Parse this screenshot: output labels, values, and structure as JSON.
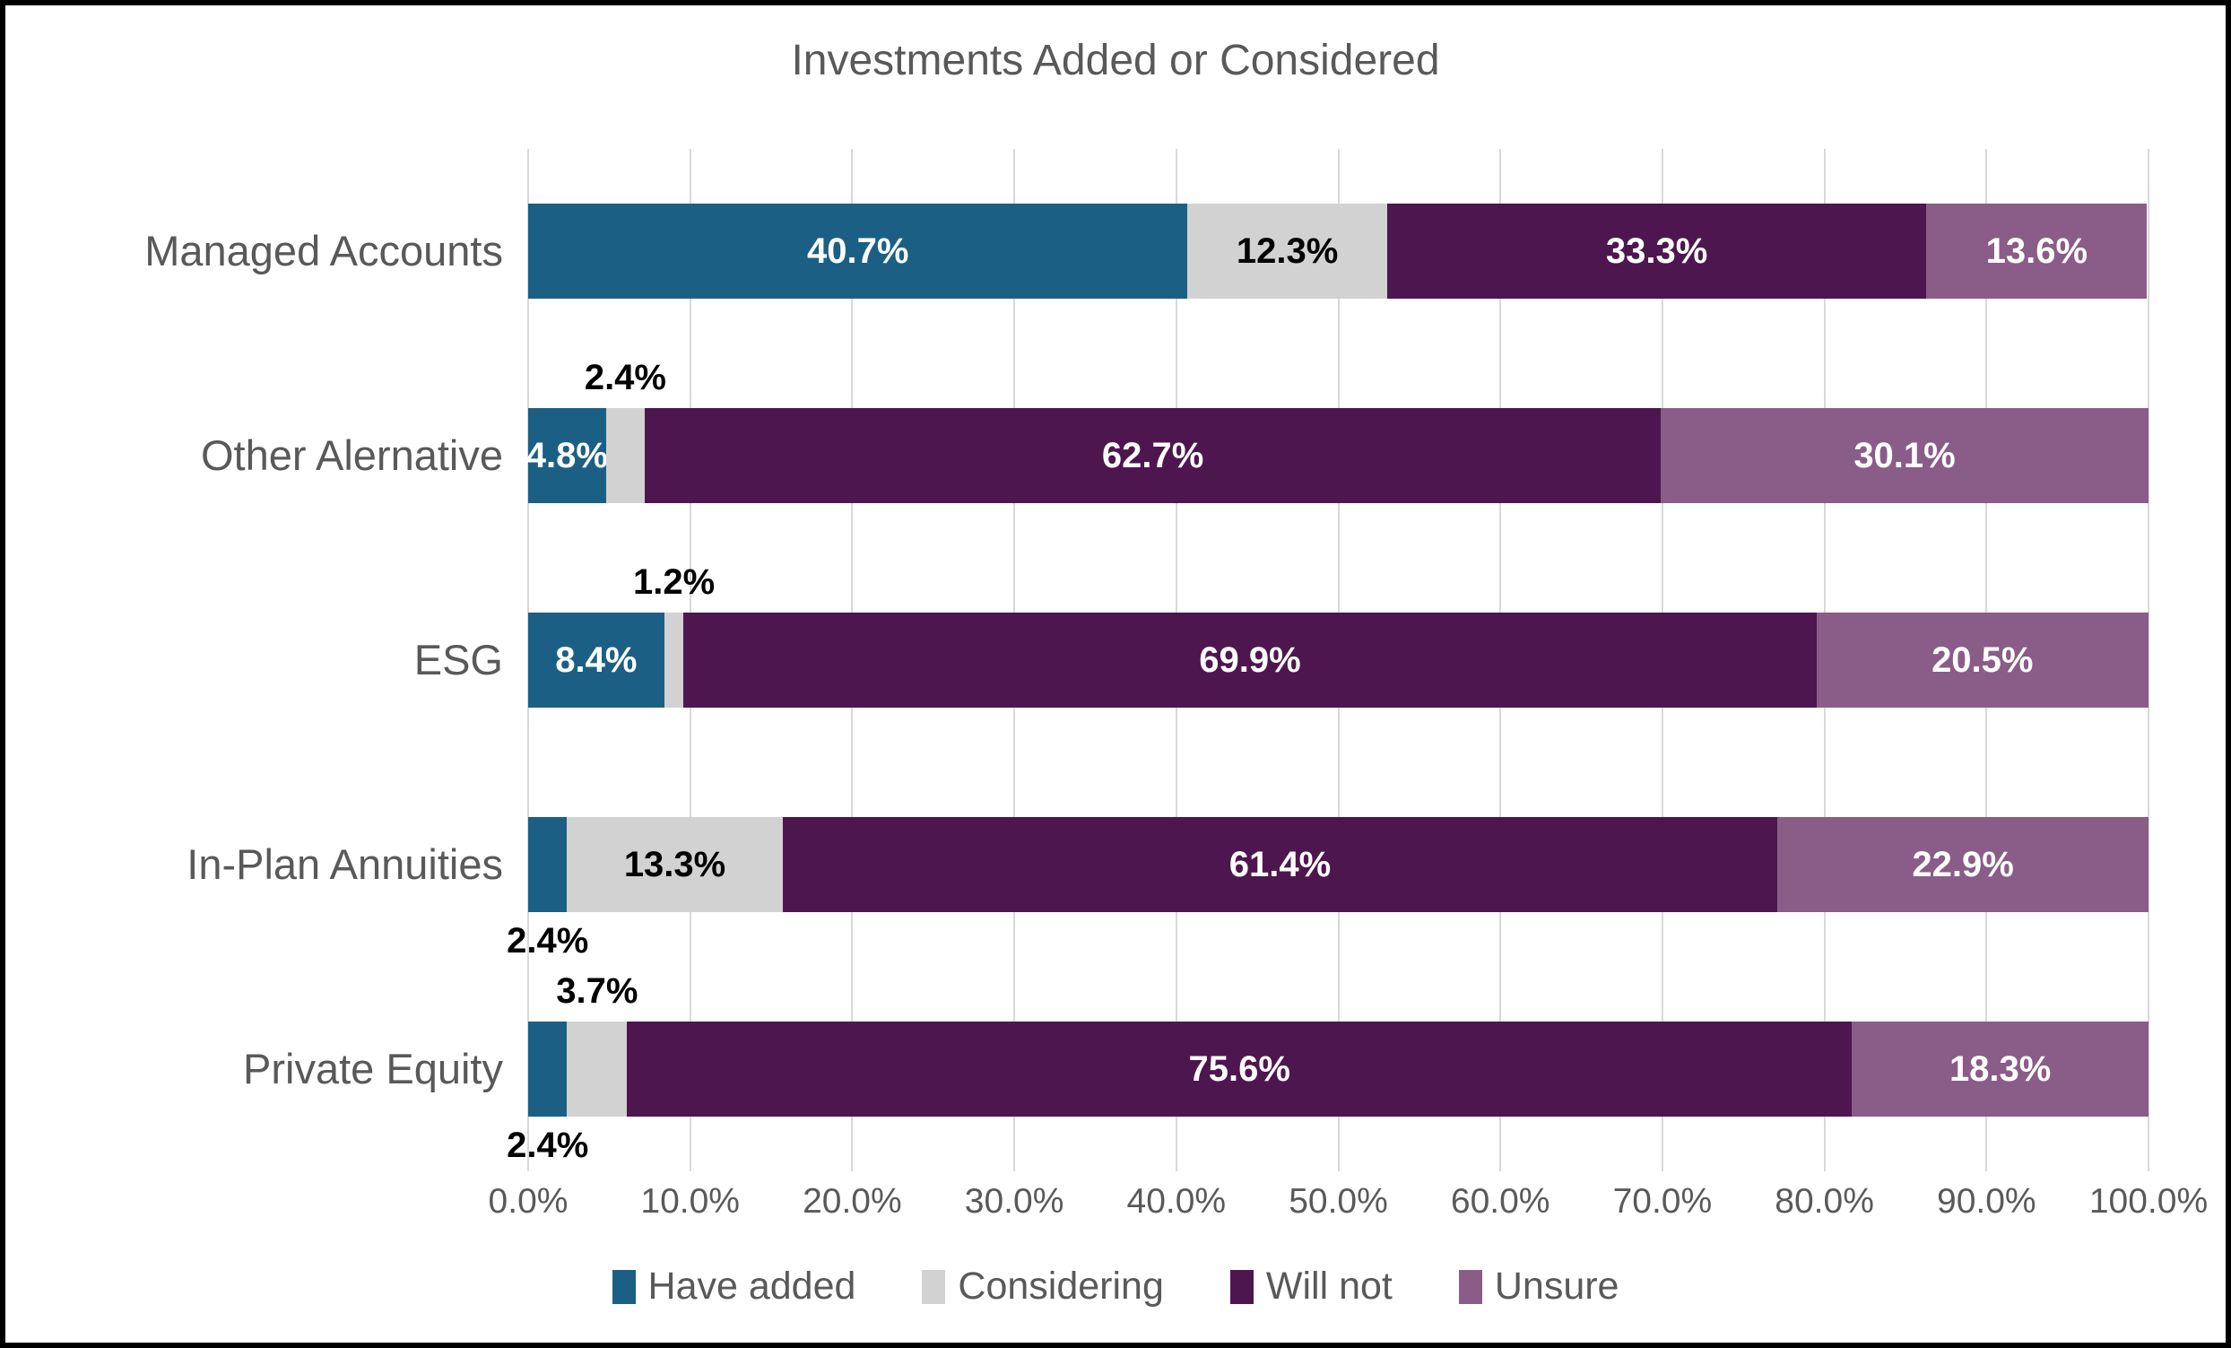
{
  "title": "Investments Added or Considered",
  "colors": {
    "have_added": "#1B6084",
    "considering": "#D2D2D2",
    "will_not": "#4E164F",
    "unsure": "#8A5C88",
    "axis_text": "#595959",
    "gridline": "#D9D9D9",
    "frame_border": "#000000"
  },
  "chart_data": {
    "type": "bar",
    "orientation": "horizontal",
    "stacked": true,
    "title": "Investments Added or Considered",
    "categories": [
      "Managed Accounts",
      "Other Alernative",
      "ESG",
      "In-Plan Annuities",
      "Private Equity"
    ],
    "series": [
      {
        "name": "Have added",
        "color": "#1B6084",
        "label_color": "#ffffff",
        "values": [
          40.7,
          4.8,
          8.4,
          2.4,
          2.4
        ]
      },
      {
        "name": "Considering",
        "color": "#D2D2D2",
        "label_color": "#000000",
        "values": [
          12.3,
          2.4,
          1.2,
          13.3,
          3.7
        ]
      },
      {
        "name": "Will not",
        "color": "#4E164F",
        "label_color": "#ffffff",
        "values": [
          33.3,
          62.7,
          69.9,
          61.4,
          75.6
        ]
      },
      {
        "name": "Unsure",
        "color": "#8A5C88",
        "label_color": "#ffffff",
        "values": [
          13.6,
          30.1,
          20.5,
          22.9,
          18.3
        ]
      }
    ],
    "data_labels": [
      [
        "40.7%",
        "12.3%",
        "33.3%",
        "13.6%"
      ],
      [
        "4.8%",
        "2.4%",
        "62.7%",
        "30.1%"
      ],
      [
        "8.4%",
        "1.2%",
        "69.9%",
        "20.5%"
      ],
      [
        "2.4%",
        "13.3%",
        "61.4%",
        "22.9%"
      ],
      [
        "2.4%",
        "3.7%",
        "75.6%",
        "18.3%"
      ]
    ],
    "label_positions": [
      [
        "inside",
        "inside",
        "inside",
        "inside"
      ],
      [
        "inside",
        "above",
        "inside",
        "inside"
      ],
      [
        "inside",
        "above",
        "inside",
        "inside"
      ],
      [
        "below",
        "inside",
        "inside",
        "inside"
      ],
      [
        "below",
        "above",
        "inside",
        "inside"
      ]
    ],
    "x_axis": {
      "min": 0,
      "max": 100,
      "tick_step": 10,
      "tick_labels": [
        "0.0%",
        "10.0%",
        "20.0%",
        "30.0%",
        "40.0%",
        "50.0%",
        "60.0%",
        "70.0%",
        "80.0%",
        "90.0%",
        "100.0%"
      ]
    },
    "grid": true,
    "legend_position": "bottom-center",
    "legend": [
      "Have added",
      "Considering",
      "Will not",
      "Unsure"
    ]
  }
}
